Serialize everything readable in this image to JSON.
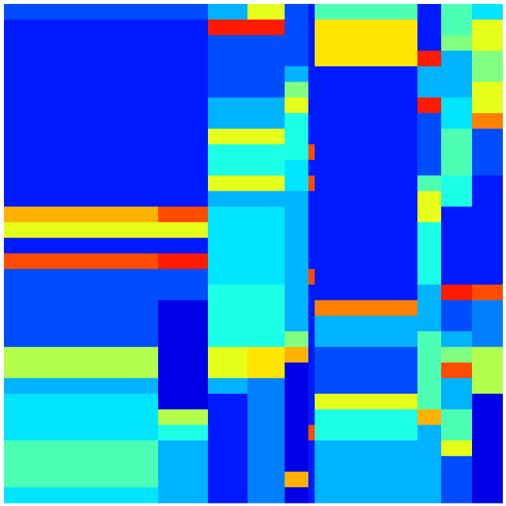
{
  "chart_data": {
    "type": "heatmap",
    "colormap": "jet",
    "values": [
      [
        0.2,
        0.2,
        0.3,
        0.6,
        0.2,
        0.15,
        0.45,
        0.15,
        0.45,
        0.35
      ],
      [
        0.15,
        0.15,
        0.85,
        0.85,
        0.2,
        0.15,
        0.65,
        0.15,
        0.45,
        0.6
      ],
      [
        0.15,
        0.15,
        0.2,
        0.2,
        0.2,
        0.15,
        0.65,
        0.15,
        0.5,
        0.6
      ],
      [
        0.15,
        0.15,
        0.2,
        0.2,
        0.2,
        0.15,
        0.65,
        0.85,
        0.3,
        0.5
      ],
      [
        0.15,
        0.15,
        0.2,
        0.2,
        0.3,
        0.15,
        0.15,
        0.3,
        0.3,
        0.5
      ],
      [
        0.15,
        0.15,
        0.2,
        0.2,
        0.5,
        0.15,
        0.15,
        0.3,
        0.3,
        0.6
      ],
      [
        0.15,
        0.15,
        0.3,
        0.3,
        0.6,
        0.15,
        0.15,
        0.85,
        0.35,
        0.6
      ],
      [
        0.15,
        0.15,
        0.3,
        0.3,
        0.4,
        0.15,
        0.15,
        0.2,
        0.35,
        0.75
      ],
      [
        0.15,
        0.15,
        0.6,
        0.6,
        0.4,
        0.15,
        0.15,
        0.2,
        0.45,
        0.2
      ],
      [
        0.15,
        0.15,
        0.4,
        0.4,
        0.4,
        0.8,
        0.15,
        0.2,
        0.45,
        0.2
      ],
      [
        0.15,
        0.15,
        0.4,
        0.4,
        0.35,
        0.15,
        0.15,
        0.2,
        0.45,
        0.2
      ],
      [
        0.15,
        0.15,
        0.6,
        0.6,
        0.35,
        0.8,
        0.15,
        0.45,
        0.4,
        0.15
      ],
      [
        0.15,
        0.15,
        0.3,
        0.3,
        0.3,
        0.15,
        0.15,
        0.6,
        0.4,
        0.15
      ],
      [
        0.7,
        0.8,
        0.35,
        0.35,
        0.3,
        0.15,
        0.15,
        0.6,
        0.15,
        0.15
      ],
      [
        0.6,
        0.6,
        0.35,
        0.35,
        0.3,
        0.15,
        0.15,
        0.4,
        0.15,
        0.15
      ],
      [
        0.15,
        0.15,
        0.35,
        0.35,
        0.3,
        0.15,
        0.15,
        0.4,
        0.15,
        0.15
      ],
      [
        0.8,
        0.85,
        0.35,
        0.35,
        0.3,
        0.15,
        0.15,
        0.4,
        0.15,
        0.15
      ],
      [
        0.2,
        0.2,
        0.35,
        0.35,
        0.3,
        0.8,
        0.15,
        0.4,
        0.15,
        0.15
      ],
      [
        0.2,
        0.2,
        0.4,
        0.4,
        0.3,
        0.15,
        0.15,
        0.3,
        0.85,
        0.8
      ],
      [
        0.2,
        0.1,
        0.4,
        0.4,
        0.3,
        0.15,
        0.75,
        0.3,
        0.2,
        0.25
      ],
      [
        0.2,
        0.1,
        0.4,
        0.4,
        0.3,
        0.15,
        0.3,
        0.3,
        0.2,
        0.25
      ],
      [
        0.2,
        0.1,
        0.4,
        0.4,
        0.5,
        0.15,
        0.3,
        0.45,
        0.3,
        0.25
      ],
      [
        0.55,
        0.1,
        0.6,
        0.65,
        0.7,
        0.15,
        0.2,
        0.45,
        0.5,
        0.55
      ],
      [
        0.55,
        0.1,
        0.6,
        0.65,
        0.1,
        0.15,
        0.2,
        0.45,
        0.8,
        0.55
      ],
      [
        0.3,
        0.1,
        0.3,
        0.25,
        0.1,
        0.15,
        0.2,
        0.45,
        0.3,
        0.55
      ],
      [
        0.35,
        0.1,
        0.15,
        0.25,
        0.1,
        0.15,
        0.6,
        0.45,
        0.3,
        0.1
      ],
      [
        0.35,
        0.55,
        0.15,
        0.25,
        0.1,
        0.15,
        0.4,
        0.7,
        0.45,
        0.1
      ],
      [
        0.35,
        0.4,
        0.15,
        0.25,
        0.1,
        0.8,
        0.4,
        0.3,
        0.45,
        0.1
      ],
      [
        0.45,
        0.3,
        0.15,
        0.25,
        0.1,
        0.15,
        0.3,
        0.3,
        0.6,
        0.1
      ],
      [
        0.45,
        0.3,
        0.15,
        0.25,
        0.1,
        0.15,
        0.3,
        0.3,
        0.2,
        0.1
      ],
      [
        0.45,
        0.3,
        0.15,
        0.25,
        0.7,
        0.15,
        0.3,
        0.3,
        0.2,
        0.1
      ],
      [
        0.35,
        0.3,
        0.15,
        0.25,
        0.1,
        0.15,
        0.3,
        0.3,
        0.2,
        0.1
      ]
    ]
  }
}
